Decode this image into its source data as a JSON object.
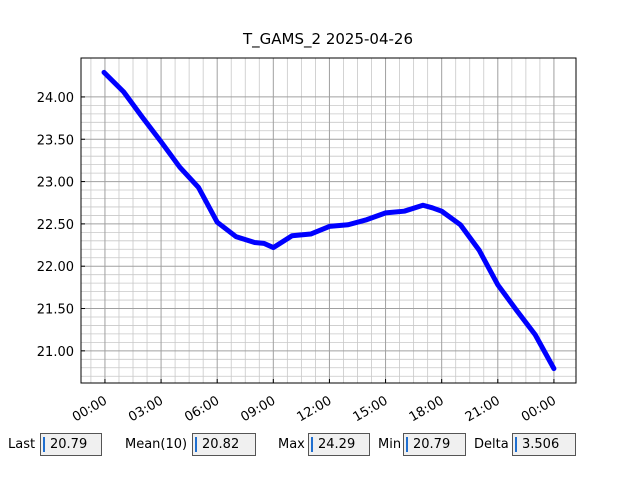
{
  "chart_data": {
    "type": "line",
    "title": "T_GAMS_2 2025-04-26",
    "x": [
      -0.05,
      1,
      2,
      3,
      4,
      5,
      6,
      7,
      8,
      8.5,
      9,
      10,
      11,
      12,
      13,
      14,
      15,
      16,
      17,
      17.5,
      18,
      19,
      20,
      21,
      22,
      23,
      24
    ],
    "series": [
      {
        "name": "T_GAMS_2",
        "color": "#0000ff",
        "values": [
          24.29,
          24.06,
          23.76,
          23.47,
          23.17,
          22.93,
          22.52,
          22.35,
          22.28,
          22.27,
          22.22,
          22.36,
          22.38,
          22.47,
          22.49,
          22.55,
          22.63,
          22.65,
          22.72,
          22.69,
          22.65,
          22.49,
          22.19,
          21.78,
          21.48,
          21.19,
          20.79
        ]
      }
    ],
    "xlim": [
      -1.28,
      25.18
    ],
    "ylim": [
      20.62,
      24.46
    ],
    "xticks": [
      {
        "value": 0,
        "label": "00:00"
      },
      {
        "value": 3,
        "label": "03:00"
      },
      {
        "value": 6,
        "label": "06:00"
      },
      {
        "value": 9,
        "label": "09:00"
      },
      {
        "value": 12,
        "label": "12:00"
      },
      {
        "value": 15,
        "label": "15:00"
      },
      {
        "value": 18,
        "label": "18:00"
      },
      {
        "value": 21,
        "label": "21:00"
      },
      {
        "value": 24,
        "label": "00:00"
      }
    ],
    "yticks": [
      {
        "value": 21,
        "label": "21.00"
      },
      {
        "value": 21.5,
        "label": "21.50"
      },
      {
        "value": 22,
        "label": "22.00"
      },
      {
        "value": 22.5,
        "label": "22.50"
      },
      {
        "value": 23,
        "label": "23.00"
      },
      {
        "value": 23.5,
        "label": "23.50"
      },
      {
        "value": 24,
        "label": "24.00"
      }
    ],
    "grid": true
  },
  "stats": [
    {
      "label": "Last",
      "value": "20.79"
    },
    {
      "label": "Mean(10)",
      "value": "20.82"
    },
    {
      "label": "Max",
      "value": "24.29"
    },
    {
      "label": "Min",
      "value": "20.79"
    },
    {
      "label": "Delta",
      "value": "3.506"
    }
  ]
}
